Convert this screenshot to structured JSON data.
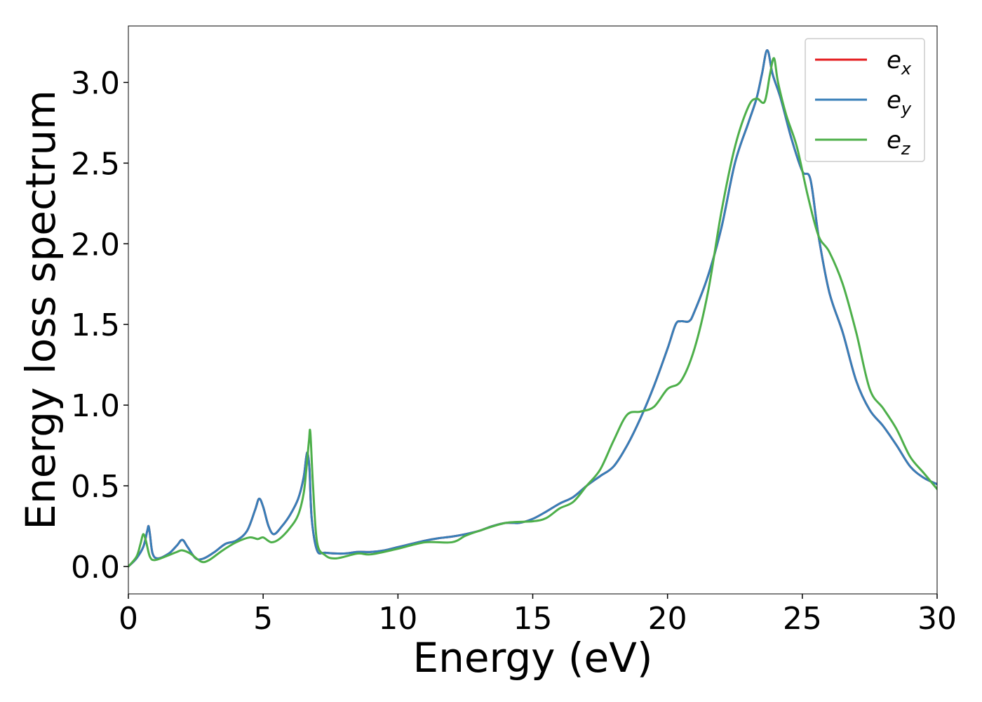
{
  "chart_data": {
    "type": "line",
    "xlabel": "Energy (eV)",
    "ylabel": "Energy loss spectrum",
    "xlim": [
      0,
      30
    ],
    "ylim": [
      -0.17,
      3.35
    ],
    "xticks": [
      0,
      5,
      10,
      15,
      20,
      25,
      30
    ],
    "xtick_labels": [
      "0",
      "5",
      "10",
      "15",
      "20",
      "25",
      "30"
    ],
    "yticks": [
      0.0,
      0.5,
      1.0,
      1.5,
      2.0,
      2.5,
      3.0
    ],
    "ytick_labels": [
      "0.0",
      "0.5",
      "1.0",
      "1.5",
      "2.0",
      "2.5",
      "3.0"
    ],
    "grid": false,
    "legend_position": "top-right",
    "series": [
      {
        "name": "e_x",
        "legend_base": "e",
        "legend_sub": "x",
        "color": "#e41a1c",
        "x": [
          0,
          0.3,
          0.55,
          0.7,
          0.75,
          0.8,
          0.9,
          1.1,
          1.5,
          1.8,
          2.0,
          2.2,
          2.5,
          2.8,
          3.2,
          3.6,
          4.0,
          4.4,
          4.7,
          4.85,
          5.0,
          5.2,
          5.4,
          5.7,
          6.0,
          6.3,
          6.5,
          6.6,
          6.65,
          6.72,
          6.8,
          7.0,
          7.3,
          8.0,
          8.5,
          9.0,
          9.5,
          10,
          10.5,
          11,
          11.5,
          12,
          12.5,
          13,
          13.5,
          14,
          14.5,
          15,
          15.5,
          16,
          16.5,
          17,
          17.5,
          18,
          18.5,
          19,
          19.5,
          20,
          20.3,
          20.5,
          20.8,
          21,
          21.5,
          22,
          22.5,
          23,
          23.3,
          23.5,
          23.7,
          23.9,
          24.2,
          24.6,
          25,
          25.3,
          25.6,
          26,
          26.5,
          27,
          27.5,
          28,
          28.5,
          29,
          29.5,
          30
        ],
        "y": [
          0,
          0.05,
          0.12,
          0.22,
          0.25,
          0.2,
          0.08,
          0.05,
          0.08,
          0.13,
          0.165,
          0.12,
          0.05,
          0.05,
          0.09,
          0.14,
          0.16,
          0.22,
          0.35,
          0.42,
          0.37,
          0.25,
          0.2,
          0.25,
          0.32,
          0.42,
          0.55,
          0.68,
          0.7,
          0.6,
          0.3,
          0.1,
          0.085,
          0.08,
          0.09,
          0.09,
          0.1,
          0.12,
          0.14,
          0.16,
          0.175,
          0.185,
          0.2,
          0.22,
          0.25,
          0.27,
          0.27,
          0.295,
          0.34,
          0.39,
          0.43,
          0.5,
          0.56,
          0.62,
          0.75,
          0.92,
          1.12,
          1.35,
          1.5,
          1.52,
          1.52,
          1.58,
          1.8,
          2.1,
          2.5,
          2.75,
          2.9,
          3.05,
          3.2,
          3.05,
          2.9,
          2.65,
          2.45,
          2.4,
          2.05,
          1.7,
          1.45,
          1.15,
          0.97,
          0.87,
          0.75,
          0.62,
          0.55,
          0.51
        ]
      },
      {
        "name": "e_y",
        "legend_base": "e",
        "legend_sub": "y",
        "color": "#377eb8",
        "x": [
          0,
          0.3,
          0.55,
          0.7,
          0.75,
          0.8,
          0.9,
          1.1,
          1.5,
          1.8,
          2.0,
          2.2,
          2.5,
          2.8,
          3.2,
          3.6,
          4.0,
          4.4,
          4.7,
          4.85,
          5.0,
          5.2,
          5.4,
          5.7,
          6.0,
          6.3,
          6.5,
          6.6,
          6.65,
          6.72,
          6.8,
          7.0,
          7.3,
          8.0,
          8.5,
          9.0,
          9.5,
          10,
          10.5,
          11,
          11.5,
          12,
          12.5,
          13,
          13.5,
          14,
          14.5,
          15,
          15.5,
          16,
          16.5,
          17,
          17.5,
          18,
          18.5,
          19,
          19.5,
          20,
          20.3,
          20.5,
          20.8,
          21,
          21.5,
          22,
          22.5,
          23,
          23.3,
          23.5,
          23.7,
          23.9,
          24.2,
          24.6,
          25,
          25.3,
          25.6,
          26,
          26.5,
          27,
          27.5,
          28,
          28.5,
          29,
          29.5,
          30
        ],
        "y": [
          0,
          0.05,
          0.12,
          0.22,
          0.25,
          0.2,
          0.08,
          0.05,
          0.08,
          0.13,
          0.165,
          0.12,
          0.05,
          0.05,
          0.09,
          0.14,
          0.16,
          0.22,
          0.35,
          0.42,
          0.37,
          0.25,
          0.2,
          0.25,
          0.32,
          0.42,
          0.55,
          0.68,
          0.7,
          0.6,
          0.3,
          0.1,
          0.085,
          0.08,
          0.09,
          0.09,
          0.1,
          0.12,
          0.14,
          0.16,
          0.175,
          0.185,
          0.2,
          0.22,
          0.25,
          0.27,
          0.27,
          0.295,
          0.34,
          0.39,
          0.43,
          0.5,
          0.56,
          0.62,
          0.75,
          0.92,
          1.12,
          1.35,
          1.5,
          1.52,
          1.52,
          1.58,
          1.8,
          2.1,
          2.5,
          2.75,
          2.9,
          3.05,
          3.2,
          3.05,
          2.9,
          2.65,
          2.45,
          2.4,
          2.05,
          1.7,
          1.45,
          1.15,
          0.97,
          0.87,
          0.75,
          0.62,
          0.55,
          0.51
        ]
      },
      {
        "name": "e_z",
        "legend_base": "e",
        "legend_sub": "z",
        "color": "#4daf4a",
        "x": [
          0,
          0.3,
          0.45,
          0.55,
          0.65,
          0.8,
          1.0,
          1.5,
          1.8,
          2.0,
          2.3,
          2.7,
          3.0,
          3.5,
          4.0,
          4.5,
          4.8,
          5.0,
          5.3,
          5.6,
          6.0,
          6.3,
          6.5,
          6.6,
          6.7,
          6.75,
          6.85,
          7.0,
          7.3,
          7.7,
          8.5,
          9.0,
          10,
          11,
          12,
          12.5,
          13,
          14,
          15,
          15.5,
          16,
          16.5,
          17,
          17.5,
          18,
          18.5,
          19,
          19.5,
          20,
          20.5,
          21,
          21.5,
          22,
          22.5,
          23,
          23.3,
          23.6,
          23.8,
          23.95,
          24.1,
          24.4,
          24.8,
          25.2,
          25.6,
          26,
          26.5,
          27,
          27.5,
          28,
          28.5,
          29,
          29.5,
          30
        ],
        "y": [
          0,
          0.06,
          0.14,
          0.2,
          0.16,
          0.06,
          0.04,
          0.07,
          0.09,
          0.1,
          0.08,
          0.03,
          0.04,
          0.1,
          0.15,
          0.18,
          0.17,
          0.18,
          0.15,
          0.17,
          0.24,
          0.32,
          0.45,
          0.6,
          0.78,
          0.83,
          0.5,
          0.15,
          0.07,
          0.05,
          0.08,
          0.075,
          0.11,
          0.15,
          0.15,
          0.19,
          0.22,
          0.27,
          0.28,
          0.3,
          0.36,
          0.4,
          0.5,
          0.6,
          0.78,
          0.94,
          0.96,
          0.99,
          1.1,
          1.15,
          1.35,
          1.7,
          2.2,
          2.6,
          2.85,
          2.9,
          2.88,
          3.05,
          3.15,
          3.0,
          2.8,
          2.6,
          2.3,
          2.05,
          1.95,
          1.75,
          1.45,
          1.1,
          0.98,
          0.85,
          0.68,
          0.58,
          0.48
        ]
      }
    ]
  }
}
